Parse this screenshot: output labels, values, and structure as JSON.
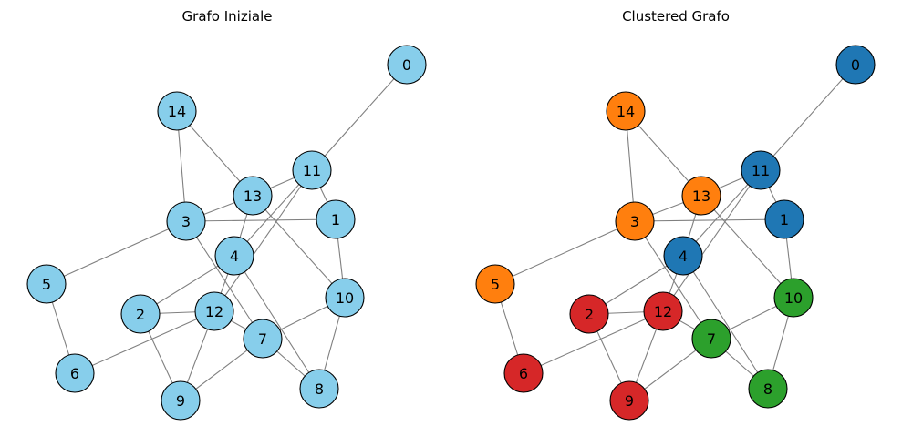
{
  "panels": [
    {
      "title": "Grafo Iniziale",
      "uniform_color": "#87ceeb",
      "colors": {}
    },
    {
      "title": "Clustered Grafo",
      "uniform_color": null,
      "colors": {
        "0": "#1f77b4",
        "1": "#1f77b4",
        "4": "#1f77b4",
        "11": "#1f77b4",
        "3": "#ff7f0e",
        "5": "#ff7f0e",
        "13": "#ff7f0e",
        "14": "#ff7f0e",
        "7": "#2ca02c",
        "8": "#2ca02c",
        "10": "#2ca02c",
        "2": "#d62728",
        "6": "#d62728",
        "9": "#d62728",
        "12": "#d62728"
      }
    }
  ],
  "graph": {
    "nodes": [
      "0",
      "1",
      "2",
      "3",
      "4",
      "5",
      "6",
      "7",
      "8",
      "9",
      "10",
      "11",
      "12",
      "13",
      "14"
    ],
    "edges": [
      [
        "0",
        "11"
      ],
      [
        "14",
        "3"
      ],
      [
        "14",
        "13"
      ],
      [
        "11",
        "13"
      ],
      [
        "11",
        "1"
      ],
      [
        "11",
        "4"
      ],
      [
        "11",
        "12"
      ],
      [
        "13",
        "3"
      ],
      [
        "13",
        "10"
      ],
      [
        "13",
        "4"
      ],
      [
        "3",
        "1"
      ],
      [
        "3",
        "5"
      ],
      [
        "3",
        "7"
      ],
      [
        "4",
        "2"
      ],
      [
        "4",
        "12"
      ],
      [
        "4",
        "8"
      ],
      [
        "5",
        "6"
      ],
      [
        "2",
        "12"
      ],
      [
        "2",
        "9"
      ],
      [
        "12",
        "6"
      ],
      [
        "12",
        "9"
      ],
      [
        "12",
        "7"
      ],
      [
        "7",
        "9"
      ],
      [
        "7",
        "10"
      ],
      [
        "7",
        "8"
      ],
      [
        "10",
        "8"
      ],
      [
        "1",
        "10"
      ]
    ]
  }
}
